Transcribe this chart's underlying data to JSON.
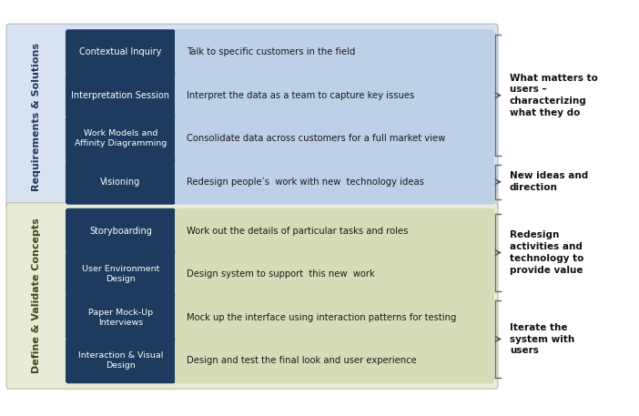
{
  "fig_width": 7.02,
  "fig_height": 4.57,
  "dpi": 100,
  "bg_color": "#ffffff",
  "section1_bg": "#d9e2f0",
  "section2_bg": "#e8ebd8",
  "dark_blue": "#1e3a5f",
  "desc_bg_1": "#bdd0e8",
  "desc_bg_2": "#d5ddb8",
  "section1_label": "Requirements & Solutions",
  "section2_label": "Define & Validate Concepts",
  "rows": [
    {
      "label": "Contextual Inquiry",
      "desc": "Talk to specific customers in the field",
      "section": 1
    },
    {
      "label": "Interpretation Session",
      "desc": "Interpret the data as a team to capture key issues",
      "section": 1
    },
    {
      "label": "Work Models and\nAffinity Diagramming",
      "desc": "Consolidate data across customers for a full market view",
      "section": 1
    },
    {
      "label": "Visioning",
      "desc": "Redesign people’s  work with new  technology ideas",
      "section": 1
    },
    {
      "label": "Storyboarding",
      "desc": "Work out the details of particular tasks and roles",
      "section": 2
    },
    {
      "label": "User Environment\nDesign",
      "desc": "Design system to support  this new  work",
      "section": 2
    },
    {
      "label": "Paper Mock-Up\nInterviews",
      "desc": "Mock up the interface using interaction patterns for testing",
      "section": 2
    },
    {
      "label": "Interaction & Visual\nDesign",
      "desc": "Design and test the final look and user experience",
      "section": 2
    }
  ],
  "annotations": [
    {
      "text": "What matters to\nusers –\ncharacterizing\nwhat they do",
      "rows": [
        0,
        1,
        2
      ]
    },
    {
      "text": "New ideas and\ndirection",
      "rows": [
        3
      ]
    },
    {
      "text": "Redesign\nactivities and\ntechnology to\nprovide value",
      "rows": [
        4,
        5
      ]
    },
    {
      "text": "Iterate the\nsystem with\nusers",
      "rows": [
        6,
        7
      ]
    }
  ]
}
